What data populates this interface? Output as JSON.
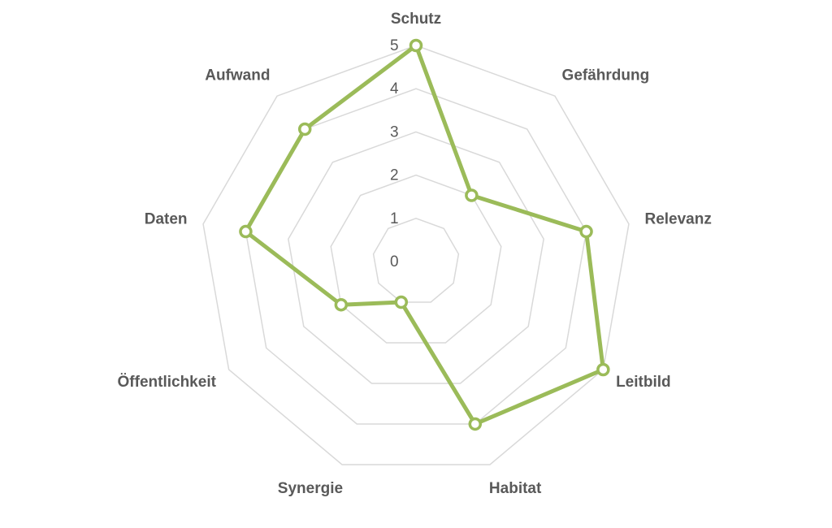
{
  "chart_data": {
    "type": "radar",
    "categories": [
      "Schutz",
      "Gefährdung",
      "Relevanz",
      "Leitbild",
      "Habitat",
      "Synergie",
      "Öffentlichkeit",
      "Daten",
      "Aufwand"
    ],
    "values": [
      5,
      2,
      4,
      5,
      4,
      1,
      2,
      4,
      4
    ],
    "color": "#9bbb59",
    "rlim": [
      0,
      5
    ],
    "rticks": [
      0,
      1,
      2,
      3,
      4,
      5
    ],
    "grid": true
  }
}
